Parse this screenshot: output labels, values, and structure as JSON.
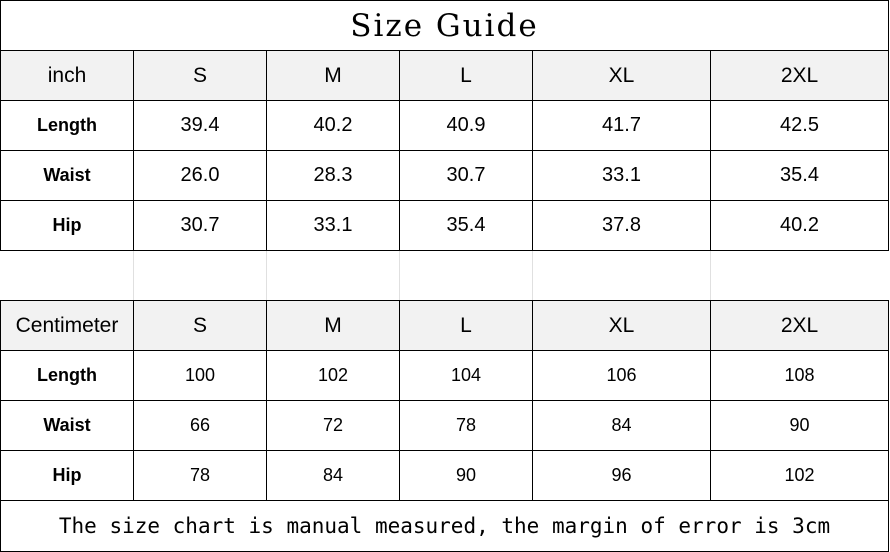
{
  "title": "Size Guide",
  "sizes": [
    "S",
    "M",
    "L",
    "XL",
    "2XL"
  ],
  "inch": {
    "unit_label": "inch",
    "rows": [
      {
        "label": "Length",
        "values": [
          "39.4",
          "40.2",
          "40.9",
          "41.7",
          "42.5"
        ]
      },
      {
        "label": "Waist",
        "values": [
          "26.0",
          "28.3",
          "30.7",
          "33.1",
          "35.4"
        ]
      },
      {
        "label": "Hip",
        "values": [
          "30.7",
          "33.1",
          "35.4",
          "37.8",
          "40.2"
        ]
      }
    ]
  },
  "cm": {
    "unit_label": "Centimeter",
    "rows": [
      {
        "label": "Length",
        "values": [
          "100",
          "102",
          "104",
          "106",
          "108"
        ]
      },
      {
        "label": "Waist",
        "values": [
          "66",
          "72",
          "78",
          "84",
          "90"
        ]
      },
      {
        "label": "Hip",
        "values": [
          "78",
          "84",
          "90",
          "96",
          "102"
        ]
      }
    ]
  },
  "footer": "The size chart is manual measured, the margin of error is 3cm"
}
